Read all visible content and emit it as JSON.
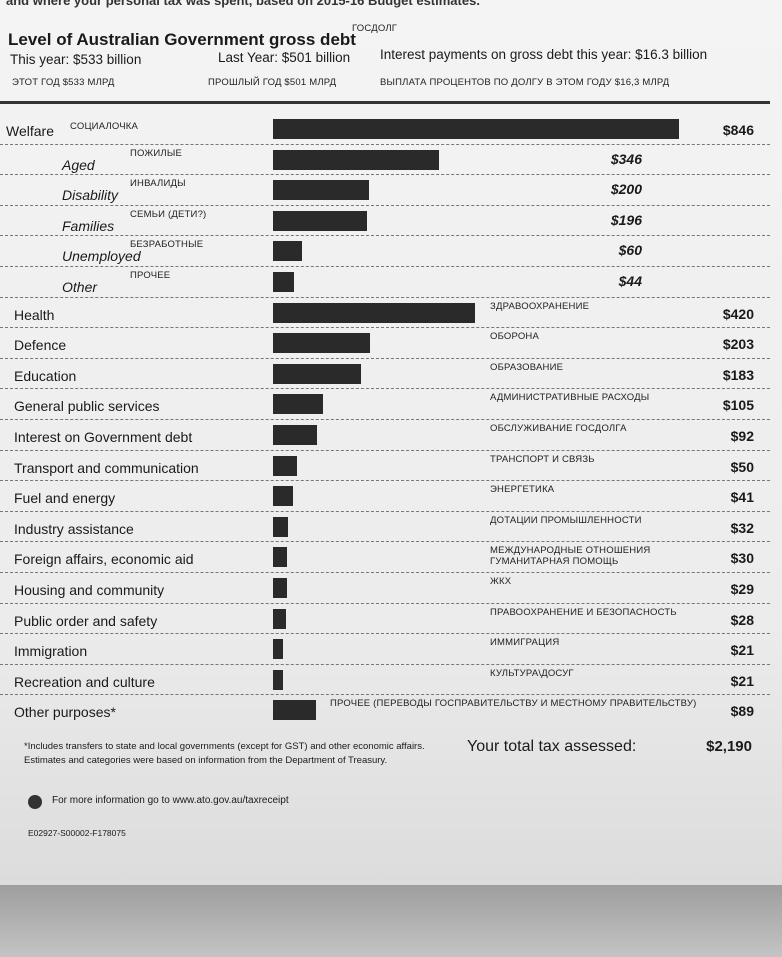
{
  "header": {
    "intro": "and where your personal tax was spent, based on 2015-16 Budget estimates.",
    "debt_title": "Level of Australian Government gross debt",
    "debt_title_ru": "ГОСДОЛГ",
    "this_year": "This year: $533 billion",
    "last_year": "Last Year: $501 billion",
    "interest": "Interest payments on gross debt this year: $16.3 billion",
    "this_year_ru": "ЭТОТ ГОД $533 МЛРД",
    "last_year_ru": "ПРОШЛЫЙ ГОД $501 МЛРД",
    "interest_ru": "ВЫПЛАТА ПРОЦЕНТОВ ПО ДОЛГУ В ЭТОМ ГОДУ $16,3 МЛРД"
  },
  "rows": [
    {
      "label": "Welfare",
      "ru": "СОЦИАЛОЧКА",
      "value": 846,
      "value_label": "$846",
      "sub": false
    },
    {
      "label": "Aged",
      "ru": "ПОЖИЛЫЕ",
      "value": 346,
      "value_label": "$346",
      "sub": true
    },
    {
      "label": "Disability",
      "ru": "ИНВАЛИДЫ",
      "value": 200,
      "value_label": "$200",
      "sub": true
    },
    {
      "label": "Families",
      "ru": "СЕМЬИ (ДЕТИ?)",
      "value": 196,
      "value_label": "$196",
      "sub": true
    },
    {
      "label": "Unemployed",
      "ru": "БЕЗРАБОТНЫЕ",
      "value": 60,
      "value_label": "$60",
      "sub": true
    },
    {
      "label": "Other",
      "ru": "ПРОЧЕЕ",
      "value": 44,
      "value_label": "$44",
      "sub": true
    },
    {
      "label": "Health",
      "ru": "ЗДРАВООХРАНЕНИЕ",
      "value": 420,
      "value_label": "$420",
      "sub": false
    },
    {
      "label": "Defence",
      "ru": "ОБОРОНА",
      "value": 203,
      "value_label": "$203",
      "sub": false
    },
    {
      "label": "Education",
      "ru": "ОБРАЗОВАНИЕ",
      "value": 183,
      "value_label": "$183",
      "sub": false
    },
    {
      "label": "General public services",
      "ru": "АДМИНИСТРАТИВНЫЕ РАСХОДЫ",
      "value": 105,
      "value_label": "$105",
      "sub": false
    },
    {
      "label": "Interest on Government debt",
      "ru": "ОБСЛУЖИВАНИЕ ГОСДОЛГА",
      "value": 92,
      "value_label": "$92",
      "sub": false
    },
    {
      "label": "Transport and communication",
      "ru": "ТРАНСПОРТ И СВЯЗЬ",
      "value": 50,
      "value_label": "$50",
      "sub": false
    },
    {
      "label": "Fuel and energy",
      "ru": "ЭНЕРГЕТИКА",
      "value": 41,
      "value_label": "$41",
      "sub": false
    },
    {
      "label": "Industry assistance",
      "ru": "ДОТАЦИИ ПРОМЫШЛЕННОСТИ",
      "value": 32,
      "value_label": "$32",
      "sub": false
    },
    {
      "label": "Foreign affairs, economic aid",
      "ru": [
        "МЕЖДУНАРОДНЫЕ ОТНОШЕНИЯ",
        "ГУМАНИТАРНАЯ ПОМОЩЬ"
      ],
      "value": 30,
      "value_label": "$30",
      "sub": false
    },
    {
      "label": "Housing and community",
      "ru": "ЖКХ",
      "value": 29,
      "value_label": "$29",
      "sub": false
    },
    {
      "label": "Public order and safety",
      "ru": "ПРАВООХРАНЕНИЕ И БЕЗОПАСНОСТЬ",
      "value": 28,
      "value_label": "$28",
      "sub": false
    },
    {
      "label": "Immigration",
      "ru": "ИММИГРАЦИЯ",
      "value": 21,
      "value_label": "$21",
      "sub": false
    },
    {
      "label": "Recreation and culture",
      "ru": "КУЛЬТУРА\\ДОСУГ",
      "value": 21,
      "value_label": "$21",
      "sub": false
    },
    {
      "label": "Other purposes*",
      "ru": "ПРОЧЕЕ (ПЕРЕВОДЫ ГОСПРАВИТЕЛЬСТВУ И МЕСТНОМУ ПРАВИТЕЛЬСТВУ)",
      "value": 89,
      "value_label": "$89",
      "sub": false
    }
  ],
  "footer": {
    "note_1": "*Includes transfers to state and local governments (except for GST) and other economic affairs.",
    "note_2": "Estimates and categories were based on information from the Department of Treasury.",
    "total_label": "Your total tax assessed:",
    "total_value": "$2,190",
    "info": "For more information go to www.ato.gov.au/taxreceipt",
    "code": "E02927-S00002-F178075"
  }
}
